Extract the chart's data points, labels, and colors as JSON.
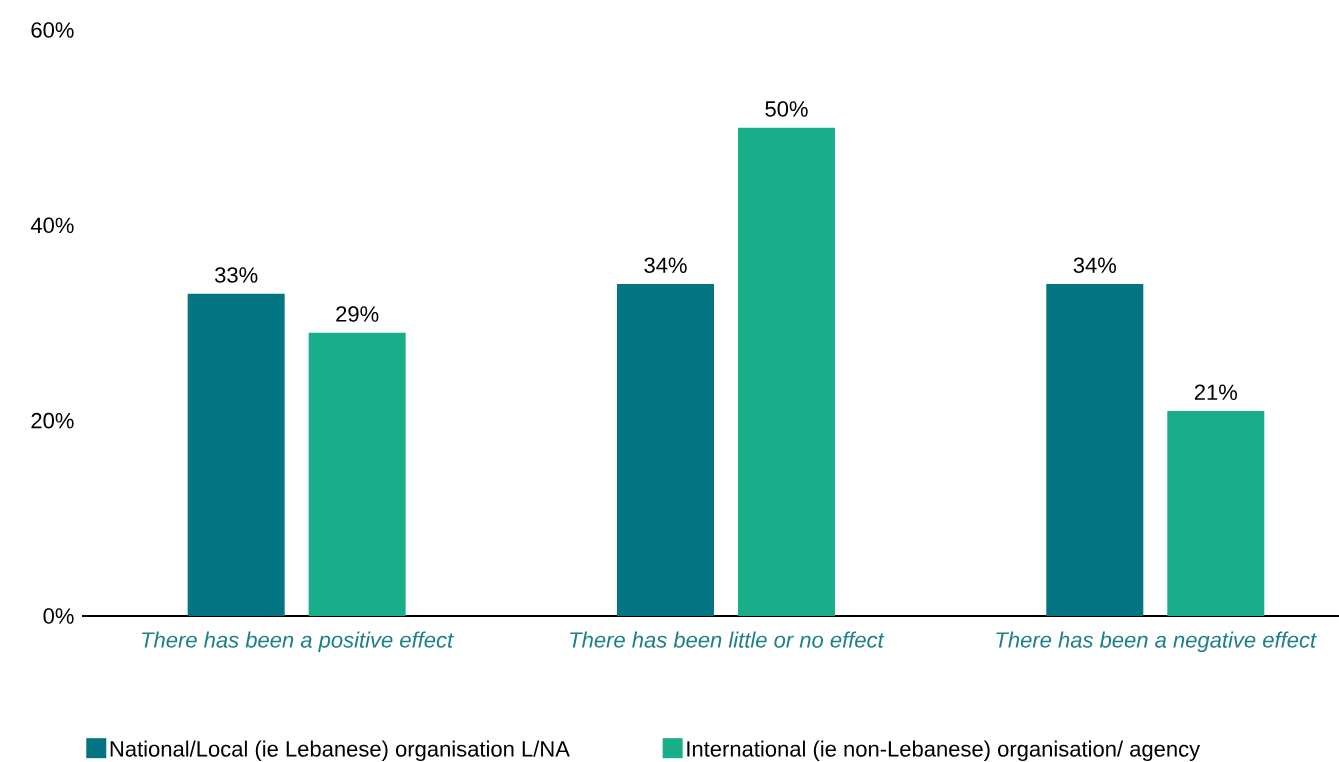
{
  "chart_data": {
    "type": "bar",
    "categories": [
      "There has been a positive effect",
      "There has been little or no effect",
      "There has been a negative effect"
    ],
    "series": [
      {
        "name": "National/Local (ie Lebanese) organisation L/NA",
        "color": "#037482",
        "values": [
          33,
          34,
          34
        ],
        "value_labels": [
          "33%",
          "34%",
          "34%"
        ]
      },
      {
        "name": "International (ie non-Lebanese) organisation/ agency",
        "color": "#17ae89",
        "values": [
          29,
          50,
          21
        ],
        "value_labels": [
          "29%",
          "50%",
          "21%"
        ]
      }
    ],
    "ylim": [
      0,
      60
    ],
    "yticks": [
      {
        "value": 0,
        "label": "0%"
      },
      {
        "value": 20,
        "label": "20%"
      },
      {
        "value": 40,
        "label": "40%"
      },
      {
        "value": 60,
        "label": "60%"
      }
    ],
    "grid": false,
    "legend": "bottom"
  }
}
